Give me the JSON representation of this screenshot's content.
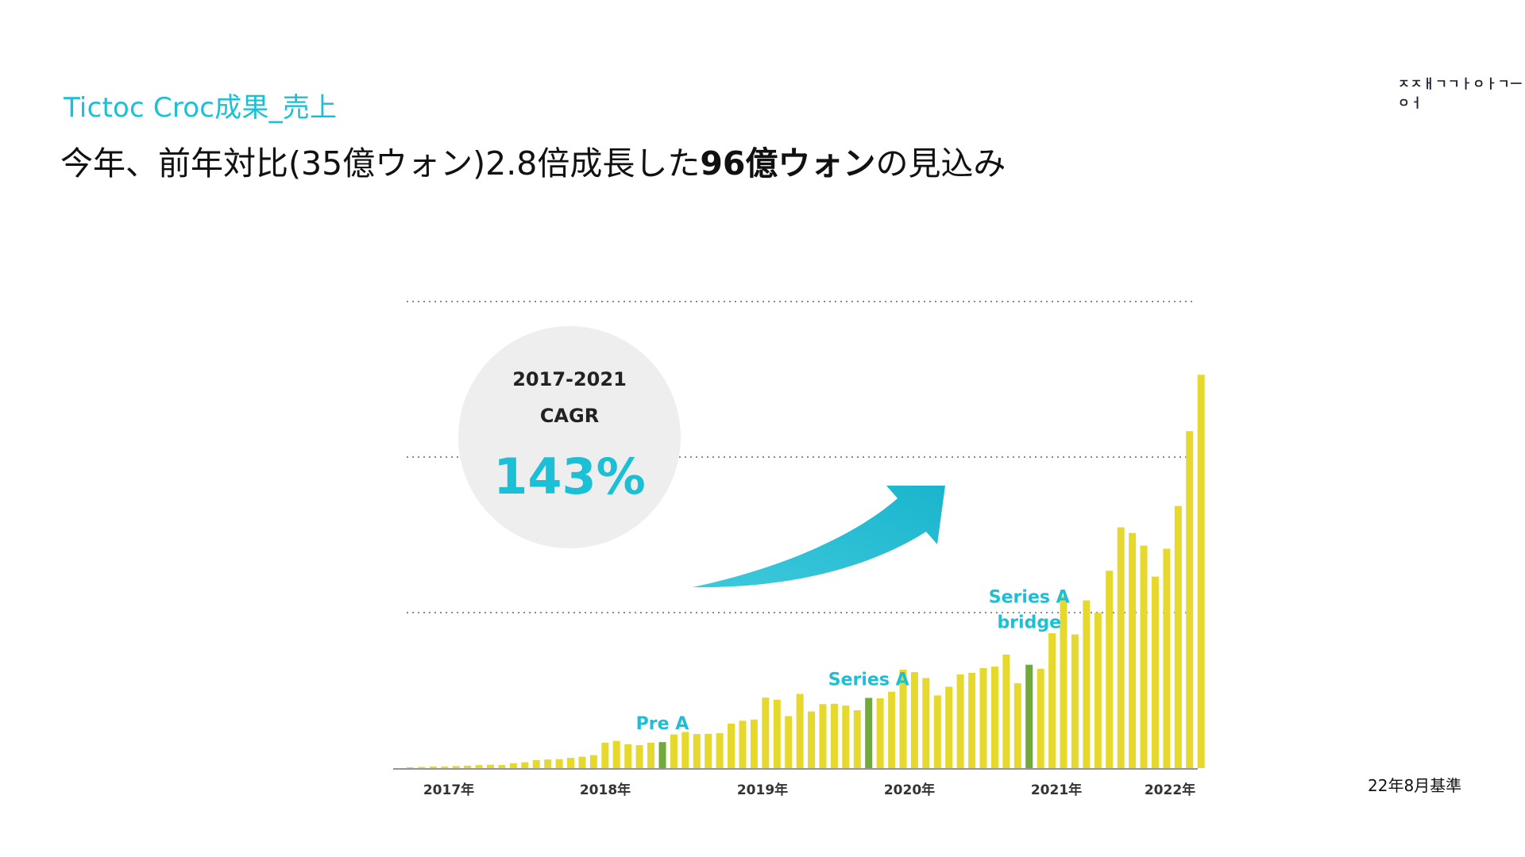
{
  "header": {
    "section_title": "Tictoc Croc成果_売上",
    "subtitle_part1": "今年、前年対比(35億ウォン)2.8倍成長した",
    "subtitle_bold": "96億ウォン",
    "subtitle_part2": "の見込み"
  },
  "logo_text": "ㅈㅈㅐㄱㄱㅏㅇㅏㄱㅡㅇㅓ",
  "note": "22年8月基準",
  "colors": {
    "accent": "#1bbfd6",
    "bar": "#e6d82d",
    "bar_funding": "#6faa3a",
    "circle": "#eeeeee"
  },
  "chart_data": {
    "type": "bar",
    "title": "",
    "xlabel": "",
    "ylabel": "",
    "x_tick_labels": [
      "2017年",
      "2018年",
      "2019年",
      "2020年",
      "2021年",
      "2022年"
    ],
    "grid": "horizontal dotted",
    "values": [
      0.3,
      0.4,
      0.5,
      0.5,
      0.7,
      0.8,
      1.0,
      1.1,
      1.0,
      1.6,
      1.9,
      2.6,
      2.8,
      2.9,
      3.3,
      3.7,
      4.2,
      8.2,
      8.8,
      7.7,
      7.4,
      8.2,
      8.4,
      10.9,
      11.7,
      11.0,
      11.1,
      11.3,
      14.4,
      15.3,
      15.7,
      22.8,
      22.1,
      16.8,
      24.0,
      18.3,
      20.7,
      20.8,
      20.2,
      18.7,
      22.7,
      22.6,
      24.7,
      31.8,
      31.0,
      29.1,
      23.5,
      26.3,
      30.3,
      30.8,
      32.3,
      32.8,
      36.7,
      27.4,
      33.4,
      32.1,
      43.6,
      55.6,
      43.2,
      54.2,
      50.2,
      63.8,
      77.8,
      76.0,
      71.9,
      61.9,
      70.9,
      84.7,
      108.9,
      127.1
    ],
    "funding_bar_indices": [
      22,
      40,
      54
    ],
    "annotations": [
      {
        "label": "Pre A",
        "bar_index": 22
      },
      {
        "label": "Series A",
        "bar_index": 40
      },
      {
        "label": "Series A\nbridge",
        "bar_index": 54
      }
    ],
    "callout": {
      "period": "2017-2021",
      "metric": "CAGR",
      "value": "143%"
    }
  }
}
